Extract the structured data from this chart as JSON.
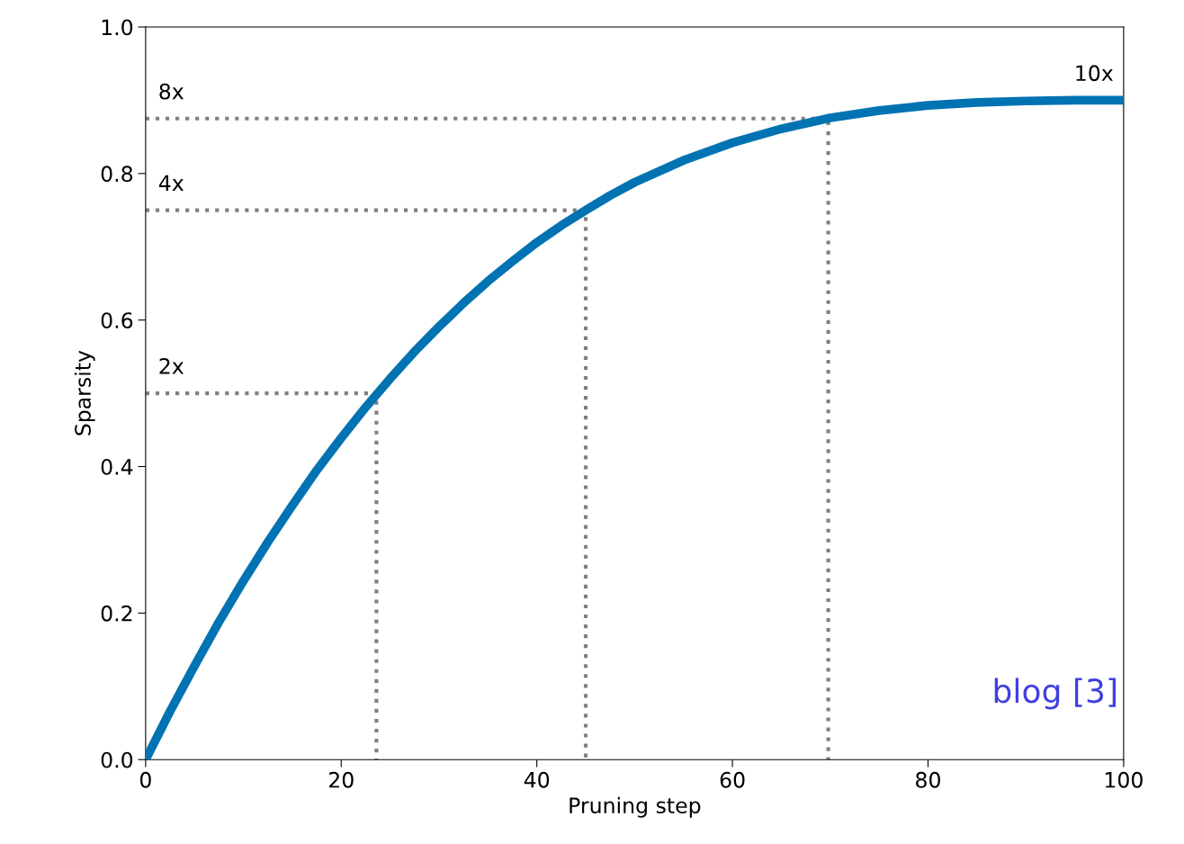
{
  "chart_data": {
    "type": "line",
    "xlabel": "Pruning step",
    "ylabel": "Sparsity",
    "xlim": [
      0,
      100
    ],
    "ylim": [
      0,
      1.0
    ],
    "xticks": [
      0,
      20,
      40,
      60,
      80,
      100
    ],
    "yticks": [
      {
        "value": 0,
        "label": "0.0"
      },
      0.2,
      0.4,
      0.6,
      0.8,
      {
        "value": 1,
        "label": "1.0"
      }
    ],
    "grid": false,
    "legend": false,
    "series": [
      {
        "color": "#0173b2",
        "line_style": "solid",
        "x": [
          0,
          2.5,
          5,
          7.5,
          10,
          12.5,
          15,
          17.5,
          20,
          22.5,
          25,
          27.5,
          30,
          32.5,
          35,
          37.5,
          40,
          42.5,
          45,
          47.5,
          50,
          55,
          60,
          65,
          70,
          75,
          80,
          85,
          90,
          95,
          100
        ],
        "values": [
          0,
          0.066,
          0.128,
          0.188,
          0.244,
          0.297,
          0.347,
          0.395,
          0.439,
          0.481,
          0.52,
          0.557,
          0.591,
          0.623,
          0.653,
          0.68,
          0.706,
          0.729,
          0.75,
          0.77,
          0.788,
          0.818,
          0.842,
          0.861,
          0.876,
          0.886,
          0.893,
          0.897,
          0.899,
          0.9,
          0.9
        ]
      },
      {
        "color": "#808080",
        "line_style": "dotted",
        "x": [
          0,
          23.6,
          23.6
        ],
        "values": [
          0.5,
          0.5,
          0
        ]
      },
      {
        "color": "#808080",
        "line_style": "dotted",
        "x": [
          0,
          45,
          45
        ],
        "values": [
          0.75,
          0.75,
          0
        ]
      },
      {
        "color": "#808080",
        "line_style": "dotted",
        "x": [
          0,
          69.8,
          69.8
        ],
        "values": [
          0.875,
          0.875,
          0
        ]
      }
    ],
    "annotations": [
      {
        "text": "2x",
        "y": 0.5
      },
      {
        "text": "4x",
        "y": 0.75
      },
      {
        "text": "8x",
        "y": 0.875
      },
      {
        "text": "10x",
        "x": 100,
        "y": 0.9
      },
      "blog [3]"
    ]
  }
}
